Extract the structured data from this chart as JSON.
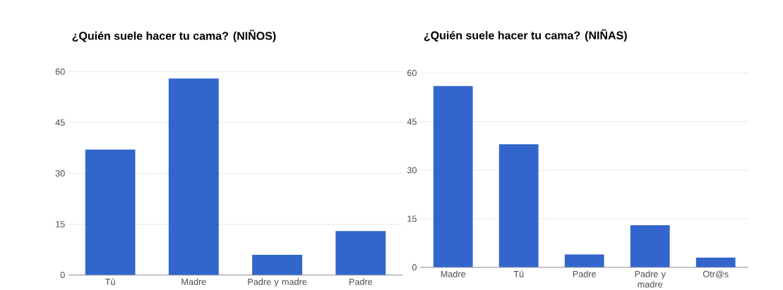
{
  "chart_data": [
    {
      "type": "bar",
      "title": "¿Quién suele hacer tu cama? (NIÑOS)",
      "categories": [
        "Tú",
        "Madre",
        "Padre y madre",
        "Padre"
      ],
      "values": [
        37,
        58,
        6,
        13
      ],
      "color": "#3366cc",
      "ylim": [
        0,
        60
      ],
      "yticks": [
        0,
        15,
        30,
        45,
        60
      ],
      "grid": "y"
    },
    {
      "type": "bar",
      "title": "¿Quién suele hacer tu cama? (NIÑAS)",
      "categories": [
        "Madre",
        "Tú",
        "Padre",
        "Padre y madre",
        "Otr@s"
      ],
      "values": [
        56,
        38,
        4,
        13,
        3
      ],
      "color": "#3366cc",
      "ylim": [
        0,
        60
      ],
      "yticks": [
        0,
        15,
        30,
        45,
        60
      ],
      "grid": "y"
    }
  ]
}
